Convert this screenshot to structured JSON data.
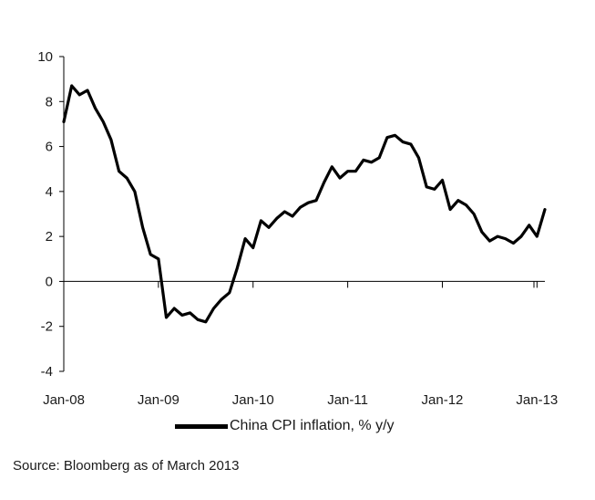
{
  "chart_data": {
    "type": "line",
    "x_tick_labels": [
      "Jan-08",
      "Jan-09",
      "Jan-10",
      "Jan-11",
      "Jan-12",
      "Jan-13"
    ],
    "y_ticks": [
      -4,
      -2,
      0,
      2,
      4,
      6,
      8,
      10
    ],
    "ylim": [
      -4,
      10
    ],
    "grid": false,
    "legend_position": "bottom",
    "series": [
      {
        "name": "China CPI inflation, % y/y",
        "color": "#000000",
        "x": [
          "2008-01",
          "2008-02",
          "2008-03",
          "2008-04",
          "2008-05",
          "2008-06",
          "2008-07",
          "2008-08",
          "2008-09",
          "2008-10",
          "2008-11",
          "2008-12",
          "2009-01",
          "2009-02",
          "2009-03",
          "2009-04",
          "2009-05",
          "2009-06",
          "2009-07",
          "2009-08",
          "2009-09",
          "2009-10",
          "2009-11",
          "2009-12",
          "2010-01",
          "2010-02",
          "2010-03",
          "2010-04",
          "2010-05",
          "2010-06",
          "2010-07",
          "2010-08",
          "2010-09",
          "2010-10",
          "2010-11",
          "2010-12",
          "2011-01",
          "2011-02",
          "2011-03",
          "2011-04",
          "2011-05",
          "2011-06",
          "2011-07",
          "2011-08",
          "2011-09",
          "2011-10",
          "2011-11",
          "2011-12",
          "2012-01",
          "2012-02",
          "2012-03",
          "2012-04",
          "2012-05",
          "2012-06",
          "2012-07",
          "2012-08",
          "2012-09",
          "2012-10",
          "2012-11",
          "2012-12",
          "2013-01",
          "2013-02"
        ],
        "values": [
          7.1,
          8.7,
          8.3,
          8.5,
          7.7,
          7.1,
          6.3,
          4.9,
          4.6,
          4.0,
          2.4,
          1.2,
          1.0,
          -1.6,
          -1.2,
          -1.5,
          -1.4,
          -1.7,
          -1.8,
          -1.2,
          -0.8,
          -0.5,
          0.6,
          1.9,
          1.5,
          2.7,
          2.4,
          2.8,
          3.1,
          2.9,
          3.3,
          3.5,
          3.6,
          4.4,
          5.1,
          4.6,
          4.9,
          4.9,
          5.4,
          5.3,
          5.5,
          6.4,
          6.5,
          6.2,
          6.1,
          5.5,
          4.2,
          4.1,
          4.5,
          3.2,
          3.6,
          3.4,
          3.0,
          2.2,
          1.8,
          2.0,
          1.9,
          1.7,
          2.0,
          2.5,
          2.0,
          3.2
        ]
      }
    ]
  },
  "source": "Source: Bloomberg as of March 2013"
}
